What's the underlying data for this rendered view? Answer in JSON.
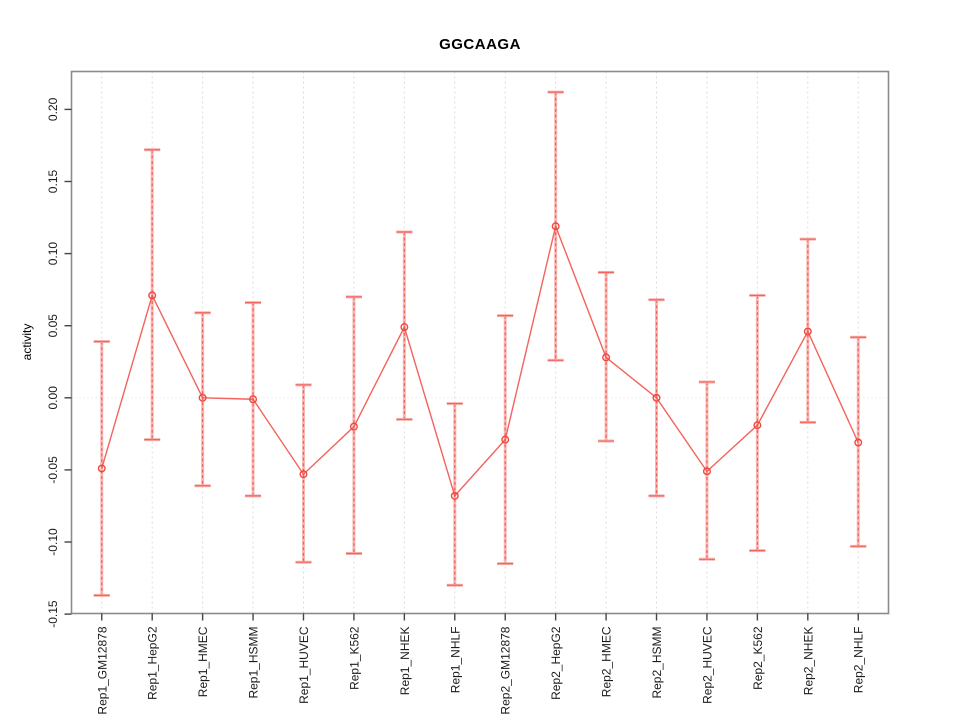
{
  "chart_data": {
    "type": "line",
    "title": "GGCAAGA",
    "xlabel": "",
    "ylabel": "activity",
    "categories": [
      "Rep1_GM12878",
      "Rep1_HepG2",
      "Rep1_HMEC",
      "Rep1_HSMM",
      "Rep1_HUVEC",
      "Rep1_K562",
      "Rep1_NHEK",
      "Rep1_NHLF",
      "Rep2_GM12878",
      "Rep2_HepG2",
      "Rep2_HMEC",
      "Rep2_HSMM",
      "Rep2_HUVEC",
      "Rep2_K562",
      "Rep2_NHEK",
      "Rep2_NHLF"
    ],
    "series": [
      {
        "name": "activity",
        "values": [
          -0.049,
          0.071,
          0.0,
          -0.001,
          -0.053,
          -0.02,
          0.049,
          -0.068,
          -0.029,
          0.119,
          0.028,
          0.0,
          -0.051,
          -0.019,
          0.046,
          -0.031
        ],
        "upper": [
          0.039,
          0.172,
          0.059,
          0.066,
          0.009,
          0.07,
          0.115,
          -0.004,
          0.057,
          0.212,
          0.087,
          0.068,
          0.011,
          0.071,
          0.11,
          0.042
        ],
        "lower": [
          -0.137,
          -0.029,
          -0.061,
          -0.068,
          -0.114,
          -0.108,
          -0.015,
          -0.13,
          -0.115,
          0.026,
          -0.03,
          -0.068,
          -0.112,
          -0.106,
          -0.017,
          -0.103
        ]
      }
    ],
    "yticks": [
      -0.15,
      -0.1,
      -0.05,
      0.0,
      0.05,
      0.1,
      0.15,
      0.2
    ],
    "ytick_labels": [
      "-0.15",
      "-0.10",
      "-0.05",
      "0.00",
      "0.05",
      "0.10",
      "0.15",
      "0.20"
    ],
    "ylim": [
      -0.15,
      0.226
    ],
    "grid": {
      "vertical_dashed": true,
      "zero_dotted_line": true,
      "legend": "none"
    },
    "colors": {
      "series_line": "#f2564f",
      "marker": "#ee4840",
      "errorbar_light": "#f9aca7",
      "errorbar_dark": "#f2564f",
      "grid_line": "#dcdcdc",
      "zero_line": "#e3e3e3",
      "axis_box": "#8c8c8c",
      "tick": "#454545",
      "tick_text": "#1a1a1a"
    }
  }
}
